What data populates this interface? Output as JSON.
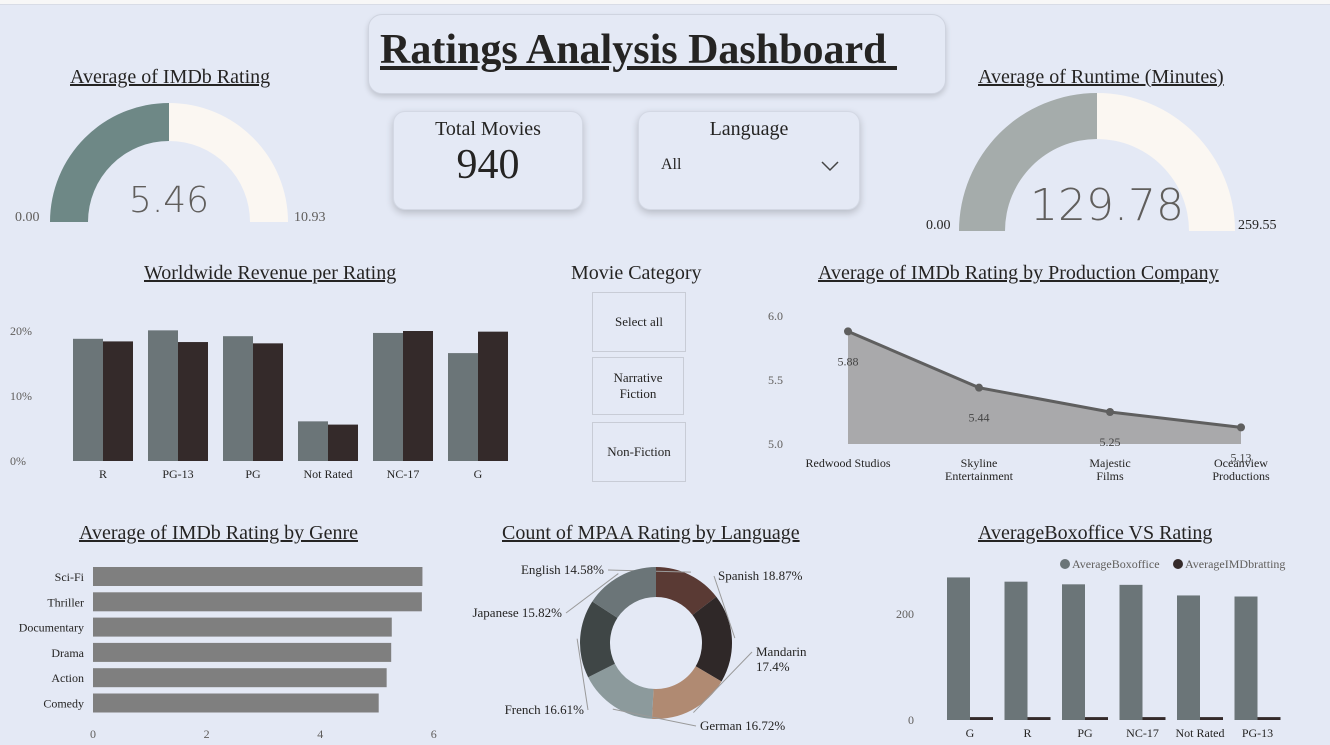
{
  "dashboard": {
    "title": "Ratings Analysis Dashboard "
  },
  "gauge_imdb": {
    "title": "Average of IMDb Rating",
    "value": "5.46",
    "min": "0.00",
    "max": "10.93",
    "fill_fraction": 0.5,
    "fill_color": "#6e8886",
    "track_color": "#fbf7f2"
  },
  "gauge_runtime": {
    "title": "Average of Runtime (Minutes)",
    "value": "129.78",
    "min": "0.00",
    "max": "259.55",
    "fill_fraction": 0.5,
    "fill_color": "#a5acab",
    "track_color": "#fbf7f2"
  },
  "total_movies": {
    "label": "Total Movies",
    "value": "940"
  },
  "language_slicer": {
    "label": "Language",
    "selected": "All",
    "icon": "chevron-down-icon"
  },
  "movie_category": {
    "title": "Movie Category",
    "options": [
      "Select all",
      "Narrative Fiction",
      "Non-Fiction"
    ]
  },
  "chart_data": [
    {
      "type": "bar",
      "title": "Worldwide Revenue per Rating",
      "categories": [
        "R",
        "PG-13",
        "PG",
        "Not Rated",
        "NC-17",
        "G"
      ],
      "y_ticks": [
        "0%",
        "10%",
        "20%"
      ],
      "ylim": [
        0,
        25
      ],
      "series": [
        {
          "values": [
            18.8,
            20.1,
            19.2,
            6.1,
            19.7,
            16.6
          ],
          "color": "#6b7578"
        },
        {
          "values": [
            18.4,
            18.3,
            18.1,
            5.6,
            20.0,
            19.9
          ],
          "color": "#342a2a"
        }
      ]
    },
    {
      "type": "area",
      "title": "Average of IMDb Rating by Production Company",
      "categories": [
        "Redwood Studios",
        "Skyline Entertainment",
        "Majestic Films",
        "Oceanview Productions"
      ],
      "values": [
        5.88,
        5.44,
        5.25,
        5.13
      ],
      "data_labels": [
        "5.88",
        "5.44",
        "5.25",
        "5.13"
      ],
      "y_ticks": [
        "5.0",
        "5.5",
        "6.0"
      ],
      "ylim": [
        5.0,
        6.0
      ],
      "fill_color": "#a9a9ab",
      "line_color": "#5f5f5f"
    },
    {
      "type": "bar",
      "orientation": "horizontal",
      "title": "Average of IMDb Rating by Genre",
      "categories": [
        "Sci-Fi",
        "Thriller",
        "Documentary",
        "Drama",
        "Action",
        "Comedy"
      ],
      "values": [
        5.8,
        5.79,
        5.26,
        5.25,
        5.17,
        5.03
      ],
      "x_ticks": [
        "0",
        "2",
        "4",
        "6"
      ],
      "xlim": [
        0,
        6
      ],
      "color": "#7f7f7f"
    },
    {
      "type": "pie",
      "title": "Count of MPAA Rating by Language",
      "labels": [
        "English 14.58%",
        "Spanish 18.87%",
        "Mandarin 17.4%",
        "German 16.72%",
        "French 16.61%",
        "Japanese 15.82%"
      ],
      "values": [
        14.58,
        18.87,
        17.4,
        16.72,
        16.61,
        15.82
      ],
      "colors": [
        "#5a3a34",
        "#2f2828",
        "#b08a72",
        "#8c9a9c",
        "#3f4646",
        "#6b7578"
      ]
    },
    {
      "type": "bar",
      "title": "AverageBoxoffice VS Rating",
      "categories": [
        "G",
        "R",
        "PG",
        "NC-17",
        "Not Rated",
        "PG-13"
      ],
      "y_ticks": [
        "0",
        "200"
      ],
      "ylim": [
        0,
        310
      ],
      "legend_position": "top-right",
      "series": [
        {
          "name": "AverageBoxoffice",
          "values": [
            269,
            261,
            256,
            255,
            235,
            233
          ],
          "color": "#6b7578"
        },
        {
          "name": "AverageIMDbratting",
          "values": [
            5.46,
            5.46,
            5.46,
            5.46,
            5.46,
            5.46
          ],
          "color": "#342a2a"
        }
      ]
    }
  ]
}
